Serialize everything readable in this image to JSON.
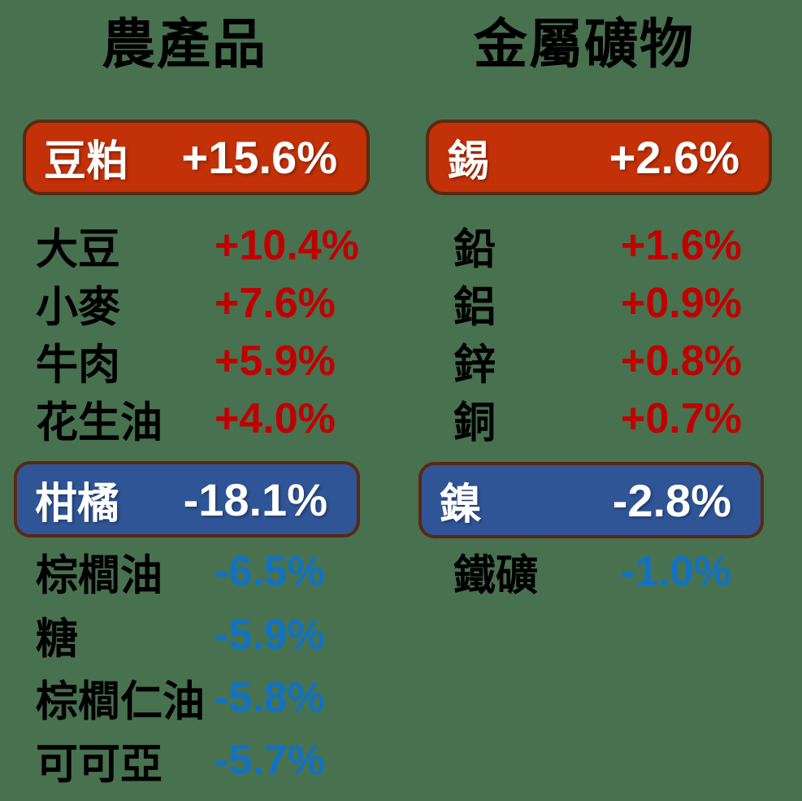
{
  "background_color": "#48714F",
  "colors": {
    "up_banner_bg": "#C33108",
    "down_banner_bg": "#2F5597",
    "banner_border": "#5A2911",
    "banner_text": "#FFFFFF",
    "up_value_text": "#C00000",
    "down_value_text": "#1172C4",
    "name_text": "#000000"
  },
  "columns": [
    {
      "title": "農產品",
      "top_banner": {
        "name": "豆粕",
        "value": "+15.6%"
      },
      "up_rows": [
        {
          "name": "大豆",
          "value": "+10.4%"
        },
        {
          "name": "小麥",
          "value": "+7.6%"
        },
        {
          "name": "牛肉",
          "value": "+5.9%"
        },
        {
          "name": "花生油",
          "value": "+4.0%"
        }
      ],
      "bottom_banner": {
        "name": "柑橘",
        "value": "-18.1%"
      },
      "down_rows": [
        {
          "name": "棕櫚油",
          "value": "-6.5%"
        },
        {
          "name": "糖",
          "value": "-5.9%"
        },
        {
          "name": "棕櫚仁油",
          "value": "-5.8%"
        },
        {
          "name": "可可亞",
          "value": "-5.7%"
        }
      ]
    },
    {
      "title": "金屬礦物",
      "top_banner": {
        "name": "錫",
        "value": "+2.6%"
      },
      "up_rows": [
        {
          "name": "鉛",
          "value": "+1.6%"
        },
        {
          "name": "鋁",
          "value": "+0.9%"
        },
        {
          "name": "鋅",
          "value": "+0.8%"
        },
        {
          "name": "銅",
          "value": "+0.7%"
        }
      ],
      "bottom_banner": {
        "name": "鎳",
        "value": "-2.8%"
      },
      "down_rows": [
        {
          "name": "鐵礦",
          "value": "-1.0%"
        }
      ]
    }
  ],
  "chart_data": {
    "type": "table",
    "title": "",
    "groups": [
      {
        "title": "農產品",
        "items": [
          {
            "label": "豆粕",
            "change_pct": 15.6,
            "highlight": "top-gainer"
          },
          {
            "label": "大豆",
            "change_pct": 10.4
          },
          {
            "label": "小麥",
            "change_pct": 7.6
          },
          {
            "label": "牛肉",
            "change_pct": 5.9
          },
          {
            "label": "花生油",
            "change_pct": 4.0
          },
          {
            "label": "柑橘",
            "change_pct": -18.1,
            "highlight": "top-loser"
          },
          {
            "label": "棕櫚油",
            "change_pct": -6.5
          },
          {
            "label": "糖",
            "change_pct": -5.9
          },
          {
            "label": "棕櫚仁油",
            "change_pct": -5.8
          },
          {
            "label": "可可亞",
            "change_pct": -5.7
          }
        ]
      },
      {
        "title": "金屬礦物",
        "items": [
          {
            "label": "錫",
            "change_pct": 2.6,
            "highlight": "top-gainer"
          },
          {
            "label": "鉛",
            "change_pct": 1.6
          },
          {
            "label": "鋁",
            "change_pct": 0.9
          },
          {
            "label": "鋅",
            "change_pct": 0.8
          },
          {
            "label": "銅",
            "change_pct": 0.7
          },
          {
            "label": "鎳",
            "change_pct": -2.8,
            "highlight": "top-loser"
          },
          {
            "label": "鐵礦",
            "change_pct": -1.0
          }
        ]
      }
    ]
  }
}
